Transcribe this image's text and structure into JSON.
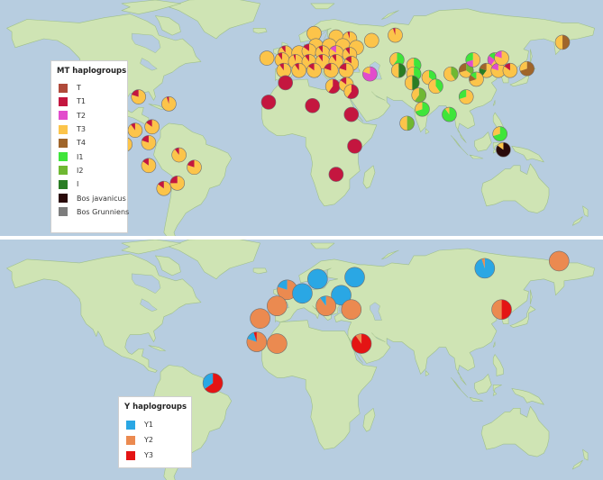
{
  "colors": {
    "ocean": "#b7cde0",
    "land": "#cfe4b4",
    "land_stroke": "#9fbf8a"
  },
  "mt_legend": {
    "title": "MT haplogroups",
    "items": [
      {
        "label": "T",
        "color": "#b04a3a"
      },
      {
        "label": "T1",
        "color": "#c4163f"
      },
      {
        "label": "T2",
        "color": "#e24ccc"
      },
      {
        "label": "T3",
        "color": "#fcc44a"
      },
      {
        "label": "T4",
        "color": "#a0652a"
      },
      {
        "label": "I1",
        "color": "#3fe53a"
      },
      {
        "label": "I2",
        "color": "#6fb832"
      },
      {
        "label": "I",
        "color": "#2a7d24"
      },
      {
        "label": "Bos javanicus",
        "color": "#2a0a0a"
      },
      {
        "label": "Bos Grunniens",
        "color": "#7d7d7d"
      }
    ]
  },
  "y_legend": {
    "title": "Y  haplogroups",
    "items": [
      {
        "label": "Y1",
        "color": "#2aa7e4"
      },
      {
        "label": "Y2",
        "color": "#eb8a50"
      },
      {
        "label": "Y3",
        "color": "#e41414"
      }
    ]
  },
  "mt_pies": [
    {
      "lat": 63,
      "lon": 14,
      "slices": {
        "T3": 1
      }
    },
    {
      "lat": 61,
      "lon": 27,
      "slices": {
        "T3": 1
      }
    },
    {
      "lat": 60,
      "lon": 35,
      "slices": {
        "T3": 0.95,
        "T1": 0.05
      }
    },
    {
      "lat": 59,
      "lon": 48,
      "slices": {
        "T3": 1
      }
    },
    {
      "lat": 62,
      "lon": 62,
      "slices": {
        "T3": 0.95,
        "T1": 0.05
      }
    },
    {
      "lat": 56,
      "lon": 15,
      "slices": {
        "T3": 1
      }
    },
    {
      "lat": 56,
      "lon": 23,
      "slices": {
        "T3": 1
      }
    },
    {
      "lat": 56,
      "lon": 31,
      "slices": {
        "T3": 1
      }
    },
    {
      "lat": 55,
      "lon": 39,
      "slices": {
        "T3": 1
      }
    },
    {
      "lat": 52,
      "lon": -3,
      "slices": {
        "T3": 0.9,
        "T1": 0.1
      }
    },
    {
      "lat": 52,
      "lon": 5,
      "slices": {
        "T3": 1
      }
    },
    {
      "lat": 53,
      "lon": 11,
      "slices": {
        "T3": 0.85,
        "T1": 0.15
      }
    },
    {
      "lat": 52,
      "lon": 19,
      "slices": {
        "T3": 0.9,
        "T1": 0.1
      }
    },
    {
      "lat": 52,
      "lon": 27,
      "slices": {
        "T3": 0.85,
        "T2": 0.15
      }
    },
    {
      "lat": 51,
      "lon": 35,
      "slices": {
        "T3": 0.9,
        "T1": 0.1
      }
    },
    {
      "lat": 49,
      "lon": -14,
      "slices": {
        "T3": 1
      }
    },
    {
      "lat": 48,
      "lon": -5,
      "slices": {
        "T3": 0.9,
        "T1": 0.1
      }
    },
    {
      "lat": 47,
      "lon": 3,
      "slices": {
        "T3": 0.95,
        "T1": 0.05
      }
    },
    {
      "lat": 47,
      "lon": 11,
      "slices": {
        "T3": 0.9,
        "T1": 0.1
      }
    },
    {
      "lat": 47,
      "lon": 19,
      "slices": {
        "T3": 0.9,
        "T1": 0.1
      }
    },
    {
      "lat": 47,
      "lon": 27,
      "slices": {
        "T3": 0.9,
        "T1": 0.1
      }
    },
    {
      "lat": 46,
      "lon": 36,
      "slices": {
        "T3": 0.85,
        "T1": 0.15
      }
    },
    {
      "lat": 42,
      "lon": -4,
      "slices": {
        "T3": 0.9,
        "T1": 0.1
      }
    },
    {
      "lat": 42,
      "lon": 5,
      "slices": {
        "T3": 0.9,
        "T1": 0.1
      }
    },
    {
      "lat": 42,
      "lon": 14,
      "slices": {
        "T3": 0.85,
        "T1": 0.15
      }
    },
    {
      "lat": 42,
      "lon": 24,
      "slices": {
        "T3": 0.8,
        "T1": 0.2
      }
    },
    {
      "lat": 42,
      "lon": 33,
      "slices": {
        "T3": 0.8,
        "T1": 0.2
      }
    },
    {
      "lat": 40,
      "lon": 47,
      "slices": {
        "T2": 0.8,
        "T3": 0.2
      }
    },
    {
      "lat": 35,
      "lon": -3,
      "slices": {
        "T1": 1
      }
    },
    {
      "lat": 33,
      "lon": 25,
      "slices": {
        "T1": 0.6,
        "T3": 0.4
      }
    },
    {
      "lat": 34,
      "lon": 33,
      "slices": {
        "T3": 0.85,
        "T1": 0.15
      }
    },
    {
      "lat": 30,
      "lon": 36,
      "slices": {
        "T1": 0.6,
        "T3": 0.4
      }
    },
    {
      "lat": 24,
      "lon": -13,
      "slices": {
        "T1": 1
      }
    },
    {
      "lat": 22,
      "lon": 13,
      "slices": {
        "T1": 1
      }
    },
    {
      "lat": 17,
      "lon": 36,
      "slices": {
        "T1": 1
      }
    },
    {
      "lat": -1,
      "lon": 38,
      "slices": {
        "T1": 1
      }
    },
    {
      "lat": -17,
      "lon": 27,
      "slices": {
        "T1": 1
      }
    },
    {
      "lat": 48,
      "lon": 63,
      "slices": {
        "I1": 0.6,
        "T3": 0.4
      }
    },
    {
      "lat": 45,
      "lon": 73,
      "slices": {
        "I1": 0.4,
        "T3": 0.6
      }
    },
    {
      "lat": 42,
      "lon": 64,
      "slices": {
        "I": 0.5,
        "T3": 0.5
      }
    },
    {
      "lat": 40,
      "lon": 73,
      "slices": {
        "I1": 0.5,
        "T3": 0.5
      }
    },
    {
      "lat": 38,
      "lon": 82,
      "slices": {
        "I1": 0.35,
        "T3": 0.65
      }
    },
    {
      "lat": 40,
      "lon": 95,
      "slices": {
        "I2": 0.4,
        "T3": 0.6
      }
    },
    {
      "lat": 42,
      "lon": 104,
      "slices": {
        "I2": 0.35,
        "T3": 0.35,
        "T4": 0.3
      }
    },
    {
      "lat": 48,
      "lon": 108,
      "slices": {
        "T3": 0.5,
        "T2": 0.2,
        "I1": 0.3
      }
    },
    {
      "lat": 48,
      "lon": 121,
      "slices": {
        "T3": 0.6,
        "T2": 0.25,
        "I1": 0.15
      }
    },
    {
      "lat": 42,
      "lon": 116,
      "slices": {
        "T3": 0.6,
        "I": 0.2,
        "T4": 0.2
      }
    },
    {
      "lat": 42,
      "lon": 123,
      "slices": {
        "T3": 0.8,
        "T2": 0.2
      }
    },
    {
      "lat": 42,
      "lon": 130,
      "slices": {
        "T3": 0.85,
        "T1": 0.15
      }
    },
    {
      "lat": 43,
      "lon": 140,
      "slices": {
        "T4": 0.7,
        "T3": 0.3
      }
    },
    {
      "lat": 37,
      "lon": 110,
      "slices": {
        "T3": 0.7,
        "T4": 0.15,
        "I1": 0.15
      }
    },
    {
      "lat": 35,
      "lon": 72,
      "slices": {
        "I": 0.5,
        "T3": 0.5
      }
    },
    {
      "lat": 33,
      "lon": 86,
      "slices": {
        "I1": 0.4,
        "T3": 0.6
      }
    },
    {
      "lat": 28,
      "lon": 76,
      "slices": {
        "I2": 0.6,
        "T3": 0.4
      }
    },
    {
      "lat": 27,
      "lon": 104,
      "slices": {
        "T3": 0.7,
        "I1": 0.3
      }
    },
    {
      "lat": 20,
      "lon": 78,
      "slices": {
        "I1": 0.7,
        "T3": 0.3
      }
    },
    {
      "lat": 17,
      "lon": 94,
      "slices": {
        "I1": 0.9,
        "T3": 0.1
      }
    },
    {
      "lat": 12,
      "lon": 69,
      "slices": {
        "I2": 0.5,
        "T3": 0.5
      }
    },
    {
      "lat": 6,
      "lon": 124,
      "slices": {
        "I1": 0.7,
        "T3": 0.3
      }
    },
    {
      "lat": -3,
      "lon": 126,
      "slices": {
        "Bos javanicus": 0.85,
        "T3": 0.15
      }
    },
    {
      "lat": 58,
      "lon": 161,
      "slices": {
        "T4": 0.5,
        "T3": 0.5
      }
    },
    {
      "lat": 49,
      "lon": 125,
      "slices": {
        "T3": 0.8,
        "T2": 0.2
      }
    },
    {
      "lat": 33,
      "lon": -109,
      "slices": {
        "T3": 0.8,
        "T1": 0.2
      }
    },
    {
      "lat": 26,
      "lon": -112,
      "slices": {
        "T3": 0.9,
        "T1": 0.1
      }
    },
    {
      "lat": 27,
      "lon": -90,
      "slices": {
        "T3": 0.8,
        "T1": 0.2
      }
    },
    {
      "lat": 23,
      "lon": -72,
      "slices": {
        "T3": 0.95,
        "T1": 0.05
      }
    },
    {
      "lat": 8,
      "lon": -92,
      "slices": {
        "T3": 0.9,
        "T1": 0.1
      }
    },
    {
      "lat": 10,
      "lon": -82,
      "slices": {
        "T3": 0.85,
        "T1": 0.15
      }
    },
    {
      "lat": 0,
      "lon": -98,
      "slices": {
        "T3": 1
      }
    },
    {
      "lat": 1,
      "lon": -84,
      "slices": {
        "T3": 0.8,
        "T1": 0.2
      }
    },
    {
      "lat": -6,
      "lon": -66,
      "slices": {
        "T3": 0.9,
        "T1": 0.1
      }
    },
    {
      "lat": -12,
      "lon": -84,
      "slices": {
        "T3": 0.85,
        "T1": 0.15
      }
    },
    {
      "lat": -13,
      "lon": -57,
      "slices": {
        "T3": 0.8,
        "T1": 0.2
      }
    },
    {
      "lat": -25,
      "lon": -75,
      "slices": {
        "T3": 0.85,
        "T1": 0.15
      }
    },
    {
      "lat": -22,
      "lon": -67,
      "slices": {
        "T3": 0.75,
        "T1": 0.25
      }
    }
  ],
  "y_pies": [
    {
      "lat": 60,
      "lon": 16,
      "slices": {
        "Y1": 1
      }
    },
    {
      "lat": 61,
      "lon": 38,
      "slices": {
        "Y1": 1
      }
    },
    {
      "lat": 66,
      "lon": 115,
      "slices": {
        "Y1": 0.95,
        "Y2": 0.05
      }
    },
    {
      "lat": 70,
      "lon": 159,
      "slices": {
        "Y2": 1
      }
    },
    {
      "lat": 54,
      "lon": -2,
      "slices": {
        "Y2": 0.8,
        "Y1": 0.2
      }
    },
    {
      "lat": 52,
      "lon": 7,
      "slices": {
        "Y1": 1
      }
    },
    {
      "lat": 51,
      "lon": 30,
      "slices": {
        "Y1": 1
      }
    },
    {
      "lat": 45,
      "lon": -8,
      "slices": {
        "Y2": 1
      }
    },
    {
      "lat": 45,
      "lon": 21,
      "slices": {
        "Y2": 0.9,
        "Y1": 0.1
      }
    },
    {
      "lat": 43,
      "lon": 36,
      "slices": {
        "Y2": 1
      }
    },
    {
      "lat": 38,
      "lon": -18,
      "slices": {
        "Y2": 1
      }
    },
    {
      "lat": 43,
      "lon": 125,
      "slices": {
        "Y3": 0.5,
        "Y2": 0.5
      }
    },
    {
      "lat": 25,
      "lon": -20,
      "slices": {
        "Y2": 0.8,
        "Y1": 0.15,
        "Y3": 0.05
      }
    },
    {
      "lat": 24,
      "lon": -8,
      "slices": {
        "Y2": 1
      }
    },
    {
      "lat": 24,
      "lon": 42,
      "slices": {
        "Y3": 0.9,
        "Y2": 0.1
      }
    },
    {
      "lat": 2,
      "lon": -46,
      "slices": {
        "Y3": 0.65,
        "Y1": 0.35
      }
    }
  ]
}
